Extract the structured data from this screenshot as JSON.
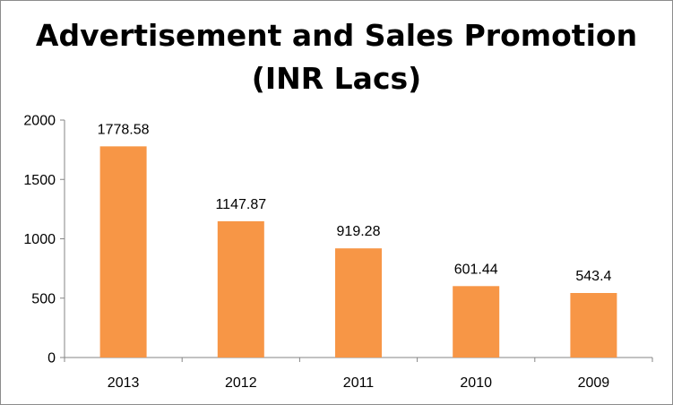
{
  "chart_data": {
    "type": "bar",
    "title_lines": [
      "Advertisement and Sales Promotion",
      "(INR Lacs)"
    ],
    "categories": [
      "2013",
      "2012",
      "2011",
      "2010",
      "2009"
    ],
    "values": [
      1778.58,
      1147.87,
      919.28,
      601.44,
      543.4
    ],
    "data_labels": [
      "1778.58",
      "1147.87",
      "919.28",
      "601.44",
      "543.4"
    ],
    "ylim": [
      0,
      2000
    ],
    "yticks": [
      "0",
      "500",
      "1000",
      "1500",
      "2000"
    ],
    "grid": false,
    "legend": "none",
    "bar_color": "#F79646"
  }
}
